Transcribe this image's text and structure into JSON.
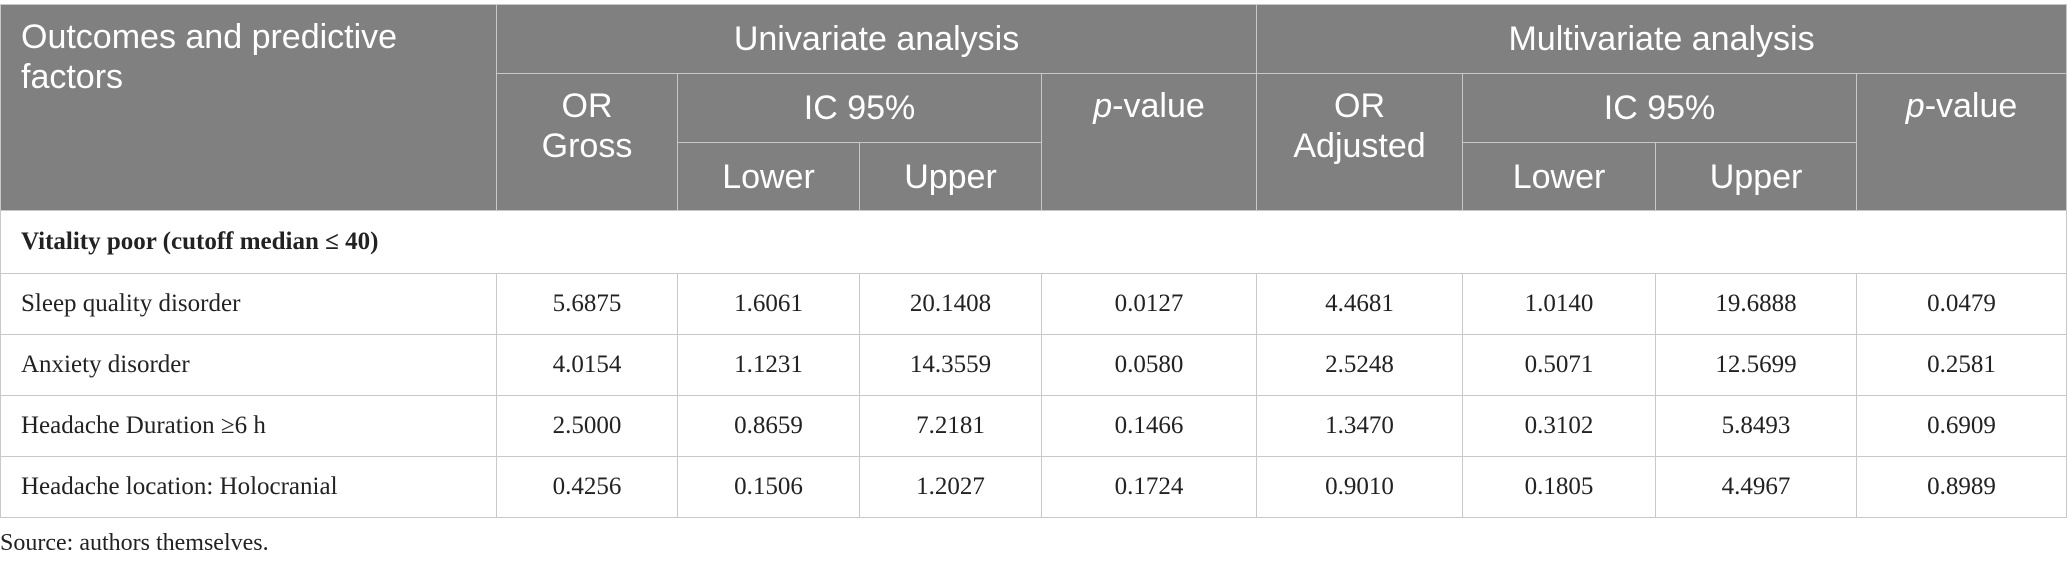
{
  "header": {
    "col_label": "Outcomes and predictive factors",
    "univariate": "Univariate analysis",
    "multivariate": "Multivariate analysis",
    "or_gross_line1": "OR",
    "or_gross_line2": "Gross",
    "or_adjusted_line1": "OR",
    "or_adjusted_line2": "Adjusted",
    "ic95": "IC 95%",
    "lower": "Lower",
    "upper": "Upper",
    "pvalue_italic": "p",
    "pvalue_rest": "-value"
  },
  "section_title": "Vitality poor (cutoff median ≤ 40)",
  "rows": [
    {
      "label": "Sleep quality disorder",
      "values": [
        "5.6875",
        "1.6061",
        "20.1408",
        "0.0127",
        "4.4681",
        "1.0140",
        "19.6888",
        "0.0479"
      ]
    },
    {
      "label": "Anxiety disorder",
      "values": [
        "4.0154",
        "1.1231",
        "14.3559",
        "0.0580",
        "2.5248",
        "0.5071",
        "12.5699",
        "0.2581"
      ]
    },
    {
      "label": "Headache Duration ≥6 h",
      "values": [
        "2.5000",
        "0.8659",
        "7.2181",
        "0.1466",
        "1.3470",
        "0.3102",
        "5.8493",
        "0.6909"
      ]
    },
    {
      "label": "Headache location: Holocranial",
      "values": [
        "0.4256",
        "0.1506",
        "1.2027",
        "0.1724",
        "0.9010",
        "0.1805",
        "4.4967",
        "0.8989"
      ]
    }
  ],
  "source": "Source: authors themselves."
}
